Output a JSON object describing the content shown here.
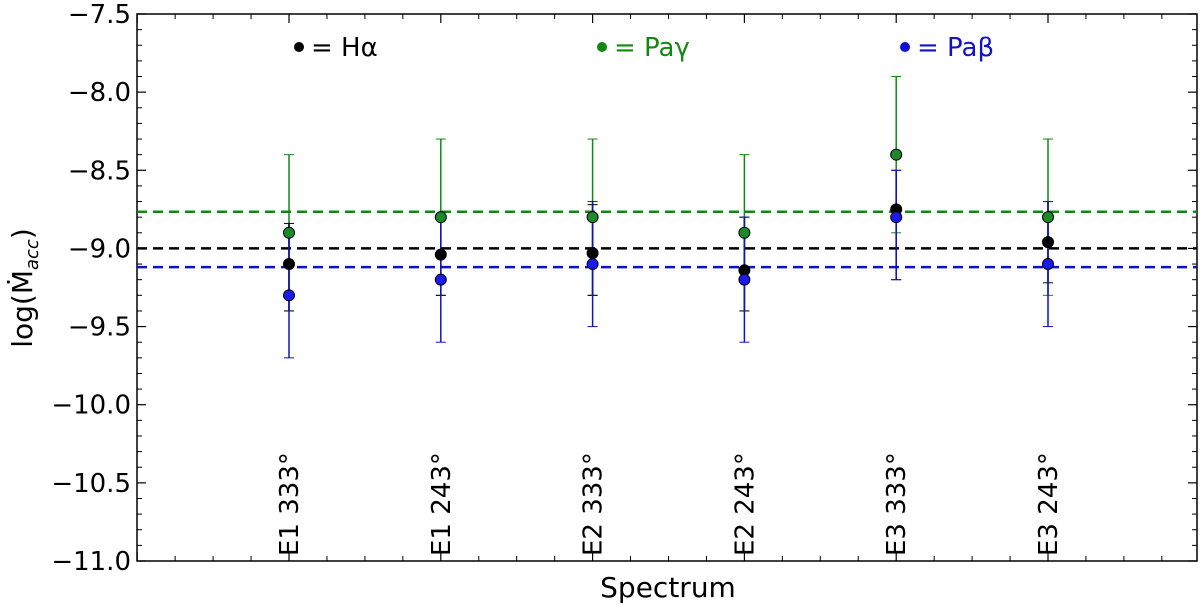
{
  "chart_data": {
    "type": "scatter",
    "title": "",
    "xlabel": "Spectrum",
    "ylabel": "log(Ṁ",
    "ylabel_sub": "acc",
    "ylabel_close": ")",
    "ylim": [
      -11.0,
      -7.5
    ],
    "yticks": [
      -7.5,
      -8.0,
      -8.5,
      -9.0,
      -9.5,
      -10.0,
      -10.5,
      -11.0
    ],
    "ytick_labels": [
      "−7.5",
      "−8.0",
      "−8.5",
      "−9.0",
      "−9.5",
      "−10.0",
      "−10.5",
      "−11.0"
    ],
    "categories": [
      "E1 333°",
      "E1 243°",
      "E2 333°",
      "E2 243°",
      "E3 333°",
      "E3 243°"
    ],
    "grid": false,
    "legend_placement": "top",
    "series": [
      {
        "name": "Hα",
        "legend_text": "= Hα",
        "color": "#000000",
        "marker_fill": "#000000",
        "values": [
          -9.1,
          -9.04,
          -9.03,
          -9.14,
          -8.75,
          -8.96
        ],
        "err_low": [
          -9.4,
          -9.3,
          -9.3,
          -9.4,
          -9.2,
          -9.22
        ],
        "err_high": [
          -8.84,
          -8.8,
          -8.72,
          -8.8,
          -8.5,
          -8.7
        ],
        "mean": -9.0
      },
      {
        "name": "Paγ",
        "legend_text": "= Paγ",
        "color": "#118811",
        "marker_fill": "#1a8a2a",
        "values": [
          -8.9,
          -8.8,
          -8.8,
          -8.9,
          -8.4,
          -8.8
        ],
        "err_low": [
          -9.4,
          -9.3,
          -9.3,
          -9.4,
          -8.9,
          -9.3
        ],
        "err_high": [
          -8.4,
          -8.3,
          -8.3,
          -8.4,
          -7.9,
          -8.3
        ],
        "mean": -8.765
      },
      {
        "name": "Paβ",
        "legend_text": "= Paβ",
        "color": "#1111cc",
        "marker_fill": "#1a1aee",
        "values": [
          -9.3,
          -9.2,
          -9.1,
          -9.2,
          -8.8,
          -9.1
        ],
        "err_low": [
          -9.7,
          -9.6,
          -9.5,
          -9.6,
          -9.2,
          -9.5
        ],
        "err_high": [
          -8.9,
          -8.8,
          -8.7,
          -8.8,
          -8.5,
          -8.7
        ],
        "mean": -9.12
      }
    ]
  }
}
